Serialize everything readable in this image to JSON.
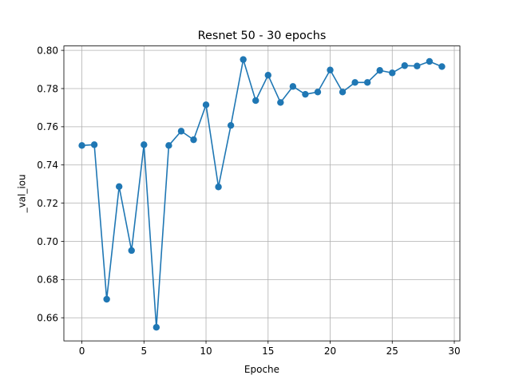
{
  "chart_data": {
    "type": "line",
    "title": "Resnet 50 - 30 epochs",
    "xlabel": "Epoche",
    "ylabel": "_val_iou",
    "xlim": [
      -1.45,
      30.45
    ],
    "ylim": [
      0.6479,
      0.8023
    ],
    "xticks": [
      0,
      5,
      10,
      15,
      20,
      25,
      30
    ],
    "yticks": [
      0.66,
      0.68,
      0.7,
      0.72,
      0.74,
      0.76,
      0.78,
      0.8
    ],
    "xtick_labels": [
      "0",
      "5",
      "10",
      "15",
      "20",
      "25",
      "30"
    ],
    "ytick_labels": [
      "0.66",
      "0.68",
      "0.70",
      "0.72",
      "0.74",
      "0.76",
      "0.78",
      "0.80"
    ],
    "grid": true,
    "color": "#1f77b4",
    "marker": "circle",
    "x": [
      0,
      1,
      2,
      3,
      4,
      5,
      6,
      7,
      8,
      9,
      10,
      11,
      12,
      13,
      14,
      15,
      16,
      17,
      18,
      19,
      20,
      21,
      22,
      23,
      24,
      25,
      26,
      27,
      28,
      29
    ],
    "y": [
      0.7502,
      0.7506,
      0.6697,
      0.7287,
      0.6952,
      0.7506,
      0.655,
      0.7502,
      0.7577,
      0.7532,
      0.7715,
      0.7285,
      0.7607,
      0.7952,
      0.7737,
      0.787,
      0.7727,
      0.7811,
      0.777,
      0.7782,
      0.7897,
      0.7782,
      0.7832,
      0.7832,
      0.7895,
      0.7882,
      0.792,
      0.7918,
      0.7942,
      0.7915
    ]
  }
}
